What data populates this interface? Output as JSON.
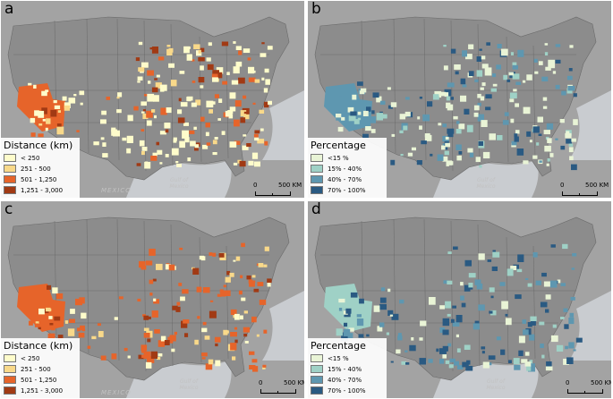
{
  "panels": [
    {
      "id": "a",
      "label": "a",
      "legend_title": "Distance (km)",
      "legend": [
        {
          "label": "< 250",
          "color": "#fefccb"
        },
        {
          "label": "251 - 500",
          "color": "#f9d98a"
        },
        {
          "label": "501 - 1,250",
          "color": "#e6642a"
        },
        {
          "label": "1,251 - 3,000",
          "color": "#a13a14"
        }
      ],
      "scale": {
        "zero": "0",
        "max": "500 KM"
      },
      "places": {
        "mexico": "MEXICO",
        "gulf": "Gulf of Mexico"
      }
    },
    {
      "id": "b",
      "label": "b",
      "legend_title": "Percentage",
      "legend": [
        {
          "label": "<15 %",
          "color": "#e9f4d6"
        },
        {
          "label": "15% - 40%",
          "color": "#9fd1c6"
        },
        {
          "label": "40% - 70%",
          "color": "#5e97b0"
        },
        {
          "label": "70% - 100%",
          "color": "#2a5a82"
        }
      ],
      "scale": {
        "zero": "0",
        "max": "500 KM"
      },
      "places": {
        "mexico": "",
        "gulf": "Gulf of Mexico"
      }
    },
    {
      "id": "c",
      "label": "c",
      "legend_title": "Distance (km)",
      "legend": [
        {
          "label": "< 250",
          "color": "#fefccb"
        },
        {
          "label": "251 - 500",
          "color": "#f9d98a"
        },
        {
          "label": "501 - 1,250",
          "color": "#e6642a"
        },
        {
          "label": "1,251 - 3,000",
          "color": "#a13a14"
        }
      ],
      "scale": {
        "zero": "0",
        "max": "500 KM"
      },
      "places": {
        "mexico": "MEXICO",
        "gulf": "Gulf of Mexico"
      }
    },
    {
      "id": "d",
      "label": "d",
      "legend_title": "Percentage",
      "legend": [
        {
          "label": "<15 %",
          "color": "#e9f4d6"
        },
        {
          "label": "15% - 40%",
          "color": "#9fd1c6"
        },
        {
          "label": "40% - 70%",
          "color": "#5e97b0"
        },
        {
          "label": "70% - 100%",
          "color": "#2a5a82"
        }
      ],
      "scale": {
        "zero": "0",
        "max": "500 KM"
      },
      "places": {
        "mexico": "",
        "gulf": "Gulf of Mexico"
      }
    }
  ],
  "colors": {
    "background_land": "#9a9a9a",
    "water": "#c9ccd0",
    "state_border": "#6a6a6a"
  }
}
